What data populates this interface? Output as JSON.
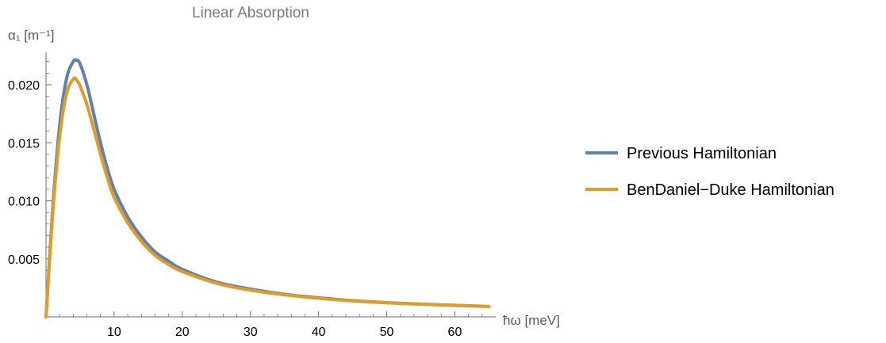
{
  "chart_data": {
    "type": "line",
    "title": "Linear Absorption",
    "ylabel": "α₁ [m⁻¹]",
    "xlabel": "ħω [meV]",
    "xlim": [
      0,
      66
    ],
    "ylim": [
      0,
      0.0228
    ],
    "xticks": [
      10,
      20,
      30,
      40,
      50,
      60
    ],
    "xtick_labels": [
      "10",
      "20",
      "30",
      "40",
      "50",
      "60"
    ],
    "yticks": [
      0.005,
      0.01,
      0.015,
      0.02
    ],
    "ytick_labels": [
      "0.005",
      "0.010",
      "0.015",
      "0.020"
    ],
    "grid": false,
    "legend_position": "right",
    "series": [
      {
        "name": "Previous Hamiltonian",
        "color": "#5e81b5",
        "x": [
          0,
          1,
          2,
          3,
          4,
          4.5,
          5,
          6,
          7,
          8,
          9,
          10,
          12,
          14,
          16,
          18,
          20,
          25,
          30,
          35,
          40,
          45,
          50,
          55,
          60,
          65
        ],
        "y": [
          0,
          0.0095,
          0.0165,
          0.0205,
          0.022,
          0.0221,
          0.0218,
          0.02,
          0.0175,
          0.015,
          0.0128,
          0.011,
          0.0086,
          0.0069,
          0.0056,
          0.0048,
          0.0041,
          0.003,
          0.0024,
          0.00195,
          0.00165,
          0.0014,
          0.00123,
          0.0011,
          0.001,
          0.0009
        ]
      },
      {
        "name": "BenDaniel−Duke Hamiltonian",
        "color": "#e19c24",
        "x": [
          0,
          1,
          2,
          3,
          4,
          4.5,
          5,
          6,
          7,
          8,
          9,
          10,
          12,
          14,
          16,
          18,
          20,
          25,
          30,
          35,
          40,
          45,
          50,
          55,
          60,
          65
        ],
        "y": [
          0,
          0.009,
          0.0155,
          0.0192,
          0.0205,
          0.0204,
          0.0199,
          0.0183,
          0.0162,
          0.014,
          0.012,
          0.0103,
          0.0081,
          0.0065,
          0.0053,
          0.0045,
          0.0039,
          0.0029,
          0.0023,
          0.0019,
          0.0016,
          0.00137,
          0.0012,
          0.00108,
          0.00098,
          0.0009
        ]
      }
    ]
  },
  "colors": {
    "axis": "#6e6e6e",
    "title": "#7a7a7a"
  }
}
